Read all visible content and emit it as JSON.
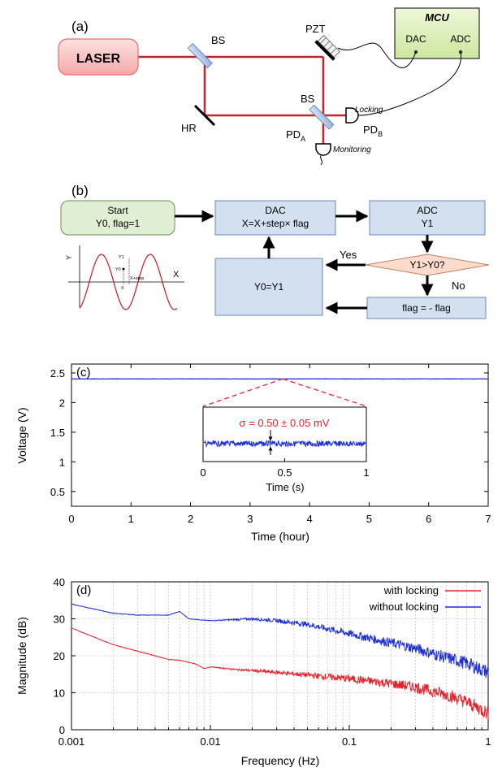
{
  "panel_a": {
    "label": "(a)",
    "laser": "LASER",
    "bs_top": "BS",
    "bs_bottom": "BS",
    "hr": "HR",
    "pzt": "PZT",
    "mcu": {
      "title": "MCU",
      "dac": "DAC",
      "adc": "ADC"
    },
    "locking": "Locking",
    "monitoring": "Monitoring",
    "pda": {
      "main": "PD",
      "sub": "A"
    },
    "pdb": {
      "main": "PD",
      "sub": "B"
    }
  },
  "panel_b": {
    "label": "(b)",
    "start": {
      "line1": "Start",
      "line2": "Y0, flag=1"
    },
    "dac": {
      "line1": "DAC",
      "line2": "X=X+step× flag"
    },
    "adc": {
      "line1": "ADC",
      "line2": "Y1"
    },
    "decision": "Y1>Y0?",
    "yes": "Yes",
    "no": "No",
    "y0y1": "Y0=Y1",
    "flag": "flag = - flag",
    "sine": {
      "x_label": "X",
      "y_label": "Y",
      "y1": "Y1",
      "y0": "Y0",
      "x": "X",
      "xstep": "X+step"
    }
  },
  "chart_data": [
    {
      "panel": "(c)",
      "type": "line",
      "xlabel": "Time (hour)",
      "ylabel": "Voltage (V)",
      "xlim": [
        0,
        7
      ],
      "ylim": [
        0.25,
        2.65
      ],
      "xticks": [
        0,
        1,
        2,
        3,
        4,
        5,
        6,
        7
      ],
      "yticks": [
        0.5,
        1,
        1.5,
        2,
        2.5
      ],
      "xtick_labels": [
        "0",
        "1",
        "2",
        "3",
        "4",
        "5",
        "6",
        "7"
      ],
      "ytick_labels": [
        "0.5",
        "1",
        "1.5",
        "2",
        "2.5"
      ],
      "series": [
        {
          "color": "#1f2fd6",
          "x": [
            0,
            7
          ],
          "y": [
            2.4,
            2.4
          ]
        }
      ],
      "inset": {
        "xlabel": "Time (s)",
        "xlim": [
          0,
          1
        ],
        "xticks": [
          0,
          0.5,
          1
        ],
        "xtick_labels": [
          "0",
          "0.5",
          "1"
        ],
        "annotation": "σ = 0.50 ± 0.05 mV",
        "annotation_color": "#e8202a",
        "zoom_at_hour": 3.55,
        "series_color": "#1f2fd6"
      }
    },
    {
      "panel": "(d)",
      "type": "line",
      "xlabel": "Frequency (Hz)",
      "ylabel": "Magnitude (dB)",
      "xscale": "log",
      "xlim": [
        0.001,
        1
      ],
      "ylim": [
        0,
        40
      ],
      "xticks": [
        0.001,
        0.01,
        0.1,
        1
      ],
      "yticks": [
        0,
        10,
        20,
        30,
        40
      ],
      "xtick_labels": [
        "0.001",
        "0.01",
        "0.1",
        "1"
      ],
      "ytick_labels": [
        "0",
        "10",
        "20",
        "30",
        "40"
      ],
      "grid": true,
      "legend": "top-right",
      "series": [
        {
          "name": "with locking",
          "color": "#e8202a",
          "x": [
            0.001,
            0.002,
            0.004,
            0.005,
            0.006,
            0.008,
            0.009,
            0.01,
            0.015,
            0.02,
            0.03,
            0.05,
            0.1,
            0.2,
            0.3,
            0.5,
            0.7,
            1
          ],
          "y": [
            27.5,
            23,
            20,
            19,
            18.8,
            17.7,
            16.5,
            17,
            16.3,
            16,
            15.5,
            14.8,
            13.8,
            12.5,
            11.5,
            9.5,
            7.5,
            4.5
          ]
        },
        {
          "name": "without locking",
          "color": "#1f2fd6",
          "x": [
            0.001,
            0.002,
            0.003,
            0.005,
            0.006,
            0.007,
            0.008,
            0.01,
            0.02,
            0.03,
            0.05,
            0.1,
            0.2,
            0.3,
            0.5,
            0.7,
            1
          ],
          "y": [
            34,
            31.5,
            31,
            31,
            32,
            30,
            29.8,
            29.5,
            30,
            29.5,
            28.5,
            26,
            23.5,
            22,
            19.5,
            18,
            15.5
          ]
        }
      ]
    }
  ]
}
